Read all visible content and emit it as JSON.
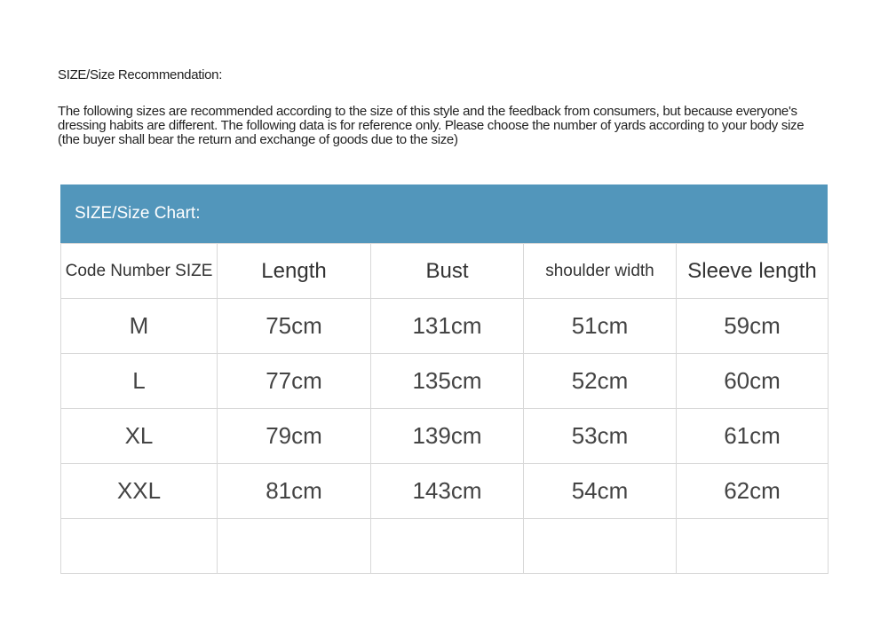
{
  "recommendation": {
    "title": "SIZE/Size Recommendation:",
    "text": "The following sizes are recommended according to the size of this style and the feedback from consumers, but because everyone's dressing habits are different. The following data is for reference only. Please choose the number of yards according to your body size (the buyer shall bear the return and exchange of goods due to the size)"
  },
  "size_chart": {
    "title": "SIZE/Size Chart:",
    "header_color": "#5296bb",
    "columns": [
      "Code Number SIZE",
      "Length",
      "Bust",
      "shoulder width",
      "Sleeve length"
    ],
    "rows": [
      [
        "M",
        "75cm",
        "131cm",
        "51cm",
        "59cm"
      ],
      [
        "L",
        "77cm",
        "135cm",
        "52cm",
        "60cm"
      ],
      [
        "XL",
        "79cm",
        "139cm",
        "53cm",
        "61cm"
      ],
      [
        "XXL",
        "81cm",
        "143cm",
        "54cm",
        "62cm"
      ],
      [
        "",
        "",
        "",
        "",
        ""
      ]
    ]
  }
}
